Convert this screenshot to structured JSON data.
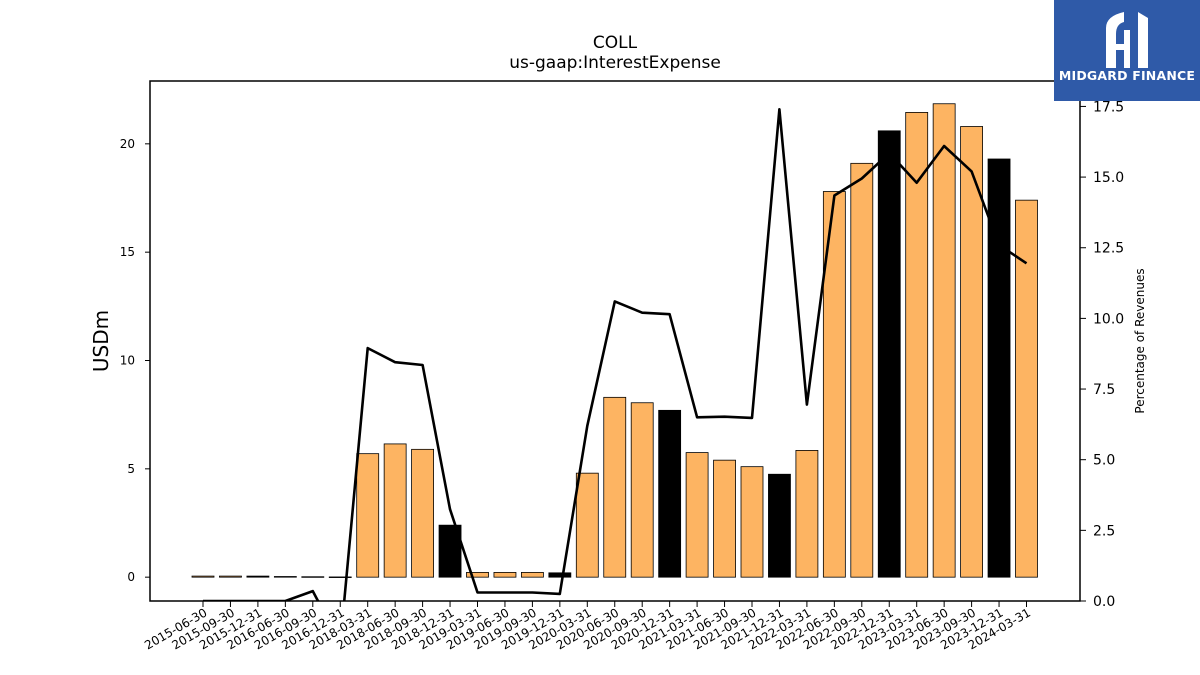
{
  "chart_data": {
    "type": "bar",
    "title": "COLL",
    "subtitle": "us-gaap:InterestExpense",
    "ylabel": "USDm",
    "y2label": "Percentage of Revenues",
    "ylim": [
      -1.1,
      22.9
    ],
    "y2lim": [
      0.0,
      18.4
    ],
    "yticks": [
      0,
      5,
      10,
      15,
      20
    ],
    "y2ticks": [
      0.0,
      2.5,
      5.0,
      7.5,
      10.0,
      12.5,
      15.0,
      17.5
    ],
    "grid": false,
    "categories": [
      "2015-06-30",
      "2015-09-30",
      "2015-12-31",
      "2016-06-30",
      "2016-09-30",
      "2016-12-31",
      "2018-03-31",
      "2018-06-30",
      "2018-09-30",
      "2018-12-31",
      "2019-03-31",
      "2019-06-30",
      "2019-09-30",
      "2019-12-31",
      "2020-03-31",
      "2020-06-30",
      "2020-09-30",
      "2020-12-31",
      "2021-03-31",
      "2021-06-30",
      "2021-09-30",
      "2021-12-31",
      "2022-03-31",
      "2022-06-30",
      "2022-09-30",
      "2022-12-31",
      "2023-03-31",
      "2023-06-30",
      "2023-09-30",
      "2023-12-31",
      "2024-03-31"
    ],
    "series": [
      {
        "kind": "bar",
        "values": [
          0.05,
          0.05,
          0.05,
          0.03,
          0.02,
          0.01,
          5.7,
          6.15,
          5.9,
          2.4,
          0.22,
          0.22,
          0.22,
          0.2,
          4.8,
          8.3,
          8.05,
          7.7,
          5.75,
          5.4,
          5.1,
          4.75,
          5.85,
          17.8,
          19.1,
          20.6,
          21.45,
          21.85,
          20.8,
          19.3,
          17.4
        ],
        "q4_flags": [
          false,
          false,
          true,
          false,
          false,
          true,
          false,
          false,
          false,
          true,
          false,
          false,
          false,
          true,
          false,
          false,
          false,
          true,
          false,
          false,
          false,
          true,
          false,
          false,
          false,
          true,
          false,
          false,
          false,
          true,
          false
        ],
        "color": "#fdb462",
        "q4_color": "#000000"
      },
      {
        "kind": "line",
        "axis": "right",
        "values": [
          0.0,
          0.0,
          0.0,
          0.0,
          0.35,
          -1.5,
          8.95,
          8.45,
          8.35,
          3.25,
          0.3,
          0.3,
          0.3,
          0.25,
          6.2,
          10.6,
          10.2,
          10.15,
          6.5,
          6.52,
          6.48,
          17.4,
          6.95,
          14.35,
          14.95,
          15.85,
          14.8,
          16.1,
          15.2,
          12.6,
          11.95
        ],
        "color": "#000000"
      }
    ]
  },
  "logo": {
    "name": "MIDGARD FINANCE",
    "icon": "midgard-logo-icon",
    "bg_color": "#2f5aa8"
  }
}
